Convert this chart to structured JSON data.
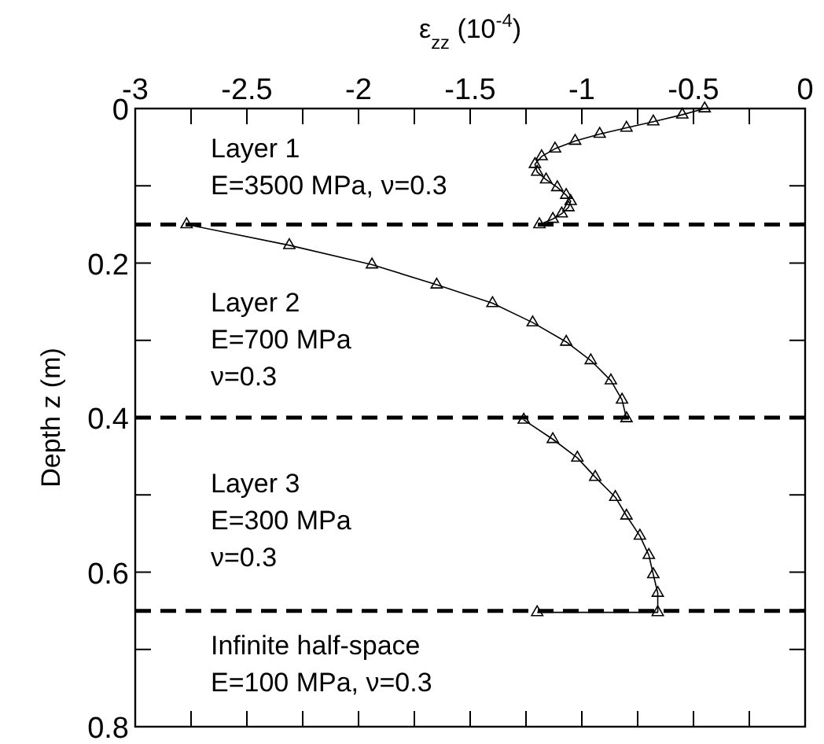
{
  "chart_data": {
    "type": "line",
    "xlabel": "ε$_{zz}$ (10$^{-4}$)",
    "ylabel": "Depth z (m)",
    "xlim": [
      -3,
      0
    ],
    "xticks": [
      -3,
      {
        "value": -2.75,
        "label": null
      },
      -2.5,
      {
        "value": -2.25,
        "label": null
      },
      -2,
      {
        "value": -1.75,
        "label": null
      },
      -1.5,
      {
        "value": -1.25,
        "label": null
      },
      -1,
      {
        "value": -0.75,
        "label": null
      },
      -0.5,
      {
        "value": -0.25,
        "label": null
      },
      0
    ],
    "ylim": [
      0.8,
      0
    ],
    "yticks": [
      0,
      {
        "value": 0.1,
        "label": null
      },
      0.2,
      {
        "value": 0.3,
        "label": null
      },
      0.4,
      {
        "value": 0.5,
        "label": null
      },
      0.6,
      {
        "value": 0.7,
        "label": null
      },
      0.8
    ],
    "marker": "triangle",
    "grid": false,
    "series": [
      {
        "color": "#000000",
        "x": [
          -0.45,
          -0.55,
          -0.68,
          -0.8,
          -0.92,
          -1.03,
          -1.12,
          -1.18,
          -1.21,
          -1.2,
          -1.16,
          -1.11,
          -1.07,
          -1.05,
          -1.06,
          -1.09,
          -1.13,
          -1.19
        ],
        "values": [
          0,
          0.008,
          0.017,
          0.025,
          0.033,
          0.042,
          0.052,
          0.062,
          0.072,
          0.082,
          0.092,
          0.102,
          0.112,
          0.12,
          0.128,
          0.136,
          0.143,
          0.15
        ]
      },
      {
        "color": "#000000",
        "x": [
          -2.77,
          -2.31,
          -1.94,
          -1.65,
          -1.4,
          -1.22,
          -1.07,
          -0.96,
          -0.87,
          -0.82,
          -0.8
        ],
        "values": [
          0.15,
          0.177,
          0.202,
          0.228,
          0.252,
          0.277,
          0.302,
          0.326,
          0.352,
          0.377,
          0.401
        ]
      },
      {
        "color": "#000000",
        "x": [
          -1.26,
          -1.13,
          -1.02,
          -0.94,
          -0.85,
          -0.8,
          -0.74,
          -0.7,
          -0.68,
          -0.66,
          -0.66,
          -1.2
        ],
        "values": [
          0.403,
          0.428,
          0.452,
          0.477,
          0.503,
          0.527,
          0.553,
          0.578,
          0.603,
          0.627,
          0.652,
          0.652
        ]
      }
    ],
    "ref_lines": [
      {
        "axis": "y",
        "value": 0.15,
        "color": "#000000",
        "line_style": "dashed"
      },
      {
        "axis": "y",
        "value": 0.4,
        "color": "#000000",
        "line_style": "dashed"
      },
      {
        "axis": "y",
        "value": 0.65,
        "color": "#000000",
        "line_style": "dashed"
      }
    ],
    "annotations": [
      "Layer 1\nE=3500 MPa, ν=0.3",
      "Layer 2\nE=700 MPa\nν=0.3",
      "Layer 3\nE=300 MPa\nν=0.3",
      "Infinite half-space\nE=100 MPa, ν=0.3"
    ]
  }
}
